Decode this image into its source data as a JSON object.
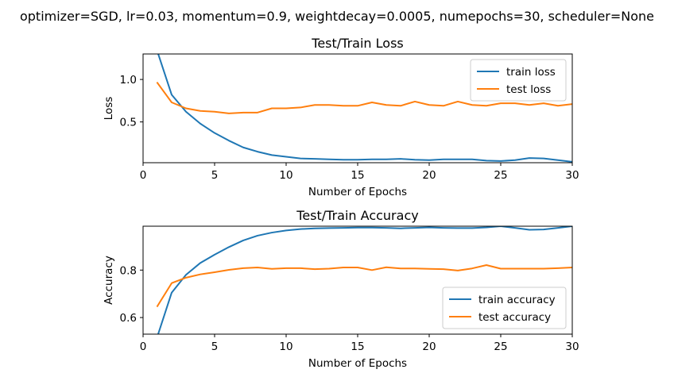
{
  "suptitle": "optimizer=SGD, lr=0.03, momentum=0.9, weightdecay=0.0005, numepochs=30, scheduler=None",
  "colors": {
    "train": "#1f77b4",
    "test": "#ff7f0e"
  },
  "chart_data": [
    {
      "type": "line",
      "title": "Test/Train Loss",
      "xlabel": "Number of Epochs",
      "ylabel": "Loss",
      "xlim": [
        0,
        30
      ],
      "ylim": [
        0.02,
        1.3
      ],
      "xticks": [
        0,
        5,
        10,
        15,
        20,
        25,
        30
      ],
      "yticks": [
        0.5,
        1.0
      ],
      "ytick_labels": [
        "0.5",
        "1.0"
      ],
      "legend": "upper-right",
      "grid": false,
      "x": [
        1,
        2,
        3,
        4,
        5,
        6,
        7,
        8,
        9,
        10,
        11,
        12,
        13,
        14,
        15,
        16,
        17,
        18,
        19,
        20,
        21,
        22,
        23,
        24,
        25,
        26,
        27,
        28,
        29,
        30
      ],
      "series": [
        {
          "name": "train loss",
          "color": "#1f77b4",
          "values": [
            1.33,
            0.82,
            0.62,
            0.48,
            0.37,
            0.28,
            0.2,
            0.15,
            0.11,
            0.09,
            0.07,
            0.065,
            0.06,
            0.055,
            0.055,
            0.06,
            0.06,
            0.065,
            0.055,
            0.05,
            0.06,
            0.06,
            0.06,
            0.045,
            0.04,
            0.05,
            0.075,
            0.07,
            0.05,
            0.03
          ]
        },
        {
          "name": "test loss",
          "color": "#ff7f0e",
          "values": [
            0.96,
            0.73,
            0.66,
            0.63,
            0.62,
            0.6,
            0.61,
            0.61,
            0.66,
            0.66,
            0.67,
            0.7,
            0.7,
            0.69,
            0.69,
            0.73,
            0.7,
            0.69,
            0.74,
            0.7,
            0.69,
            0.74,
            0.7,
            0.69,
            0.72,
            0.72,
            0.7,
            0.72,
            0.69,
            0.71
          ]
        }
      ]
    },
    {
      "type": "line",
      "title": "Test/Train Accuracy",
      "xlabel": "Number of Epochs",
      "ylabel": "Accuracy",
      "xlim": [
        0,
        30
      ],
      "ylim": [
        0.53,
        0.985
      ],
      "xticks": [
        0,
        5,
        10,
        15,
        20,
        25,
        30
      ],
      "yticks": [
        0.6,
        0.8
      ],
      "ytick_labels": [
        "0.6",
        "0.8"
      ],
      "legend": "lower-right",
      "grid": false,
      "x": [
        1,
        2,
        3,
        4,
        5,
        6,
        7,
        8,
        9,
        10,
        11,
        12,
        13,
        14,
        15,
        16,
        17,
        18,
        19,
        20,
        21,
        22,
        23,
        24,
        25,
        26,
        27,
        28,
        29,
        30
      ],
      "series": [
        {
          "name": "train accuracy",
          "color": "#1f77b4",
          "values": [
            0.52,
            0.705,
            0.78,
            0.83,
            0.865,
            0.897,
            0.925,
            0.945,
            0.958,
            0.967,
            0.973,
            0.976,
            0.977,
            0.978,
            0.979,
            0.979,
            0.978,
            0.976,
            0.978,
            0.98,
            0.978,
            0.977,
            0.977,
            0.98,
            0.985,
            0.978,
            0.97,
            0.971,
            0.978,
            0.985
          ]
        },
        {
          "name": "test accuracy",
          "color": "#ff7f0e",
          "values": [
            0.648,
            0.745,
            0.768,
            0.782,
            0.791,
            0.801,
            0.808,
            0.811,
            0.805,
            0.808,
            0.808,
            0.804,
            0.806,
            0.811,
            0.811,
            0.8,
            0.812,
            0.807,
            0.807,
            0.805,
            0.804,
            0.798,
            0.807,
            0.821,
            0.806,
            0.806,
            0.806,
            0.806,
            0.808,
            0.811
          ]
        }
      ]
    }
  ]
}
